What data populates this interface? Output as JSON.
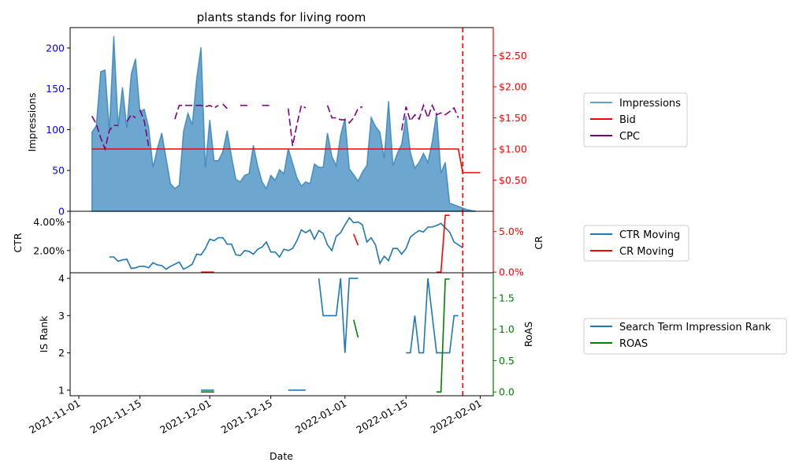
{
  "chart_data": [
    {
      "type": "area",
      "title": "plants stands for living room",
      "ylabel": "Impressions",
      "y2label": "",
      "ylim": [
        0,
        225
      ],
      "y2lim": [
        0,
        2.95
      ],
      "yticks": [
        "0",
        "50",
        "100",
        "150",
        "200"
      ],
      "y2ticks": [
        "$0.50",
        "$1.00",
        "$1.50",
        "$2.00",
        "$2.50"
      ],
      "y2_values": [
        0.5,
        1.0,
        1.5,
        2.0,
        2.5
      ],
      "left_axis_color": "#0000ff",
      "right_axis_color": "#ff0000",
      "series": [
        {
          "name": "Impressions",
          "color": "#1f77b4",
          "axis": "left",
          "x": [
            "2021-11-04",
            "2021-11-05",
            "2021-11-06",
            "2021-11-07",
            "2021-11-08",
            "2021-11-09",
            "2021-11-10",
            "2021-11-11",
            "2021-11-12",
            "2021-11-13",
            "2021-11-14",
            "2021-11-15",
            "2021-11-16",
            "2021-11-17",
            "2021-11-18",
            "2021-11-19",
            "2021-11-20",
            "2021-11-21",
            "2021-11-22",
            "2021-11-23",
            "2021-11-24",
            "2021-11-25",
            "2021-11-26",
            "2021-11-27",
            "2021-11-28",
            "2021-11-29",
            "2021-11-30",
            "2021-12-01",
            "2021-12-02",
            "2021-12-03",
            "2021-12-04",
            "2021-12-05",
            "2021-12-06",
            "2021-12-07",
            "2021-12-08",
            "2021-12-09",
            "2021-12-10",
            "2021-12-11",
            "2021-12-12",
            "2021-12-13",
            "2021-12-14",
            "2021-12-15",
            "2021-12-16",
            "2021-12-17",
            "2021-12-18",
            "2021-12-19",
            "2021-12-20",
            "2021-12-21",
            "2021-12-22",
            "2021-12-23",
            "2021-12-24",
            "2021-12-25",
            "2021-12-26",
            "2021-12-27",
            "2021-12-28",
            "2021-12-29",
            "2021-12-30",
            "2021-12-31",
            "2022-01-01",
            "2022-01-02",
            "2022-01-03",
            "2022-01-04",
            "2022-01-05",
            "2022-01-06",
            "2022-01-07",
            "2022-01-08",
            "2022-01-09",
            "2022-01-10",
            "2022-01-11",
            "2022-01-12",
            "2022-01-13",
            "2022-01-14",
            "2022-01-15",
            "2022-01-16",
            "2022-01-17",
            "2022-01-18",
            "2022-01-19",
            "2022-01-20",
            "2022-01-21",
            "2022-01-22",
            "2022-01-23",
            "2022-01-24",
            "2022-01-25",
            "2022-01-26",
            "2022-01-27",
            "2022-01-28",
            "2022-01-29",
            "2022-01-30",
            "2022-01-31"
          ],
          "values": [
            97,
            105,
            171,
            173,
            99,
            215,
            104,
            152,
            102,
            168,
            187,
            122,
            125,
            103,
            54,
            77,
            96,
            65,
            34,
            28,
            32,
            98,
            120,
            106,
            162,
            201,
            54,
            112,
            62,
            62,
            73,
            99,
            67,
            39,
            36,
            44,
            46,
            81,
            55,
            36,
            28,
            44,
            38,
            51,
            46,
            77,
            59,
            41,
            31,
            36,
            34,
            58,
            54,
            54,
            96,
            67,
            56,
            93,
            114,
            52,
            45,
            37,
            48,
            56,
            115,
            104,
            97,
            65,
            135,
            56,
            71,
            82,
            117,
            72,
            53,
            60,
            71,
            60,
            85,
            121,
            47,
            60,
            10,
            8,
            6,
            4,
            2,
            1,
            0
          ]
        },
        {
          "name": "Bid",
          "color": "#ff0000",
          "axis": "right",
          "x": [
            "2021-11-04",
            "2022-01-27",
            "2022-01-28",
            "2022-02-01"
          ],
          "values": [
            1.0,
            1.0,
            0.62,
            0.62
          ]
        },
        {
          "name": "CPC",
          "color": "#800080",
          "axis": "right",
          "segments": [
            {
              "x": [
                "2021-11-04",
                "2021-11-05",
                "2021-11-06",
                "2021-11-07",
                "2021-11-08",
                "2021-11-09",
                "2021-11-10"
              ],
              "values": [
                1.53,
                1.4,
                1.18,
                1.0,
                1.3,
                1.38,
                1.38
              ]
            },
            {
              "x": [
                "2021-11-12",
                "2021-11-13",
                "2021-11-14"
              ],
              "values": [
                1.44,
                1.55,
                1.5
              ]
            },
            {
              "x": [
                "2021-11-15",
                "2021-11-16",
                "2021-11-17"
              ],
              "values": [
                1.63,
                1.45,
                1.05
              ]
            },
            {
              "x": [
                "2021-11-23",
                "2021-11-24",
                "2021-11-25",
                "2021-11-26",
                "2021-11-27",
                "2021-11-28",
                "2021-11-29",
                "2021-11-30",
                "2021-12-01",
                "2021-12-02",
                "2021-12-03"
              ],
              "values": [
                1.48,
                1.7,
                1.7,
                1.7,
                1.7,
                1.7,
                1.7,
                1.68,
                1.7,
                1.66,
                1.7
              ]
            },
            {
              "x": [
                "2021-12-04",
                "2021-12-05"
              ],
              "values": [
                1.72,
                1.65
              ]
            },
            {
              "x": [
                "2021-12-08",
                "2021-12-09",
                "2021-12-10"
              ],
              "values": [
                1.7,
                1.7,
                1.7
              ]
            },
            {
              "x": [
                "2021-12-13",
                "2021-12-14",
                "2021-12-15"
              ],
              "values": [
                1.7,
                1.7,
                1.7
              ]
            },
            {
              "x": [
                "2021-12-19",
                "2021-12-20",
                "2021-12-21",
                "2021-12-22",
                "2021-12-23"
              ],
              "values": [
                1.65,
                1.05,
                1.4,
                1.7,
                1.66
              ]
            },
            {
              "x": [
                "2021-12-28",
                "2021-12-29",
                "2021-12-30",
                "2021-12-31",
                "2022-01-01",
                "2022-01-02",
                "2022-01-03",
                "2022-01-04",
                "2022-01-05"
              ],
              "values": [
                1.7,
                1.5,
                1.5,
                1.47,
                1.47,
                1.42,
                1.5,
                1.65,
                1.68
              ]
            },
            {
              "x": [
                "2022-01-14",
                "2022-01-15",
                "2022-01-16",
                "2022-01-17",
                "2022-01-18",
                "2022-01-19",
                "2022-01-20",
                "2022-01-21",
                "2022-01-22",
                "2022-01-23",
                "2022-01-24",
                "2022-01-25",
                "2022-01-26",
                "2022-01-27"
              ],
              "values": [
                1.3,
                1.68,
                1.45,
                1.55,
                1.48,
                1.7,
                1.5,
                1.7,
                1.55,
                1.58,
                1.55,
                1.6,
                1.66,
                1.5
              ]
            }
          ]
        }
      ],
      "vline": "2022-01-28",
      "vline_color": "#ff0000"
    },
    {
      "type": "line",
      "ylabel": "CTR",
      "y2label": "CR",
      "ylim": [
        0.0045,
        0.0475
      ],
      "y2lim": [
        -0.0008,
        0.075
      ],
      "yticks": [
        "2.00%",
        "4.00%"
      ],
      "y_values": [
        0.02,
        0.04
      ],
      "y2ticks": [
        "0.0%",
        "5.0%"
      ],
      "y2_values": [
        0.0,
        0.05
      ],
      "left_axis_color": "#000000",
      "right_axis_color": "#ff0000",
      "series": [
        {
          "name": "CTR Moving",
          "color": "#1f77b4",
          "axis": "left",
          "x": [
            "2021-11-08",
            "2021-11-09",
            "2021-11-10",
            "2021-11-11",
            "2021-11-12",
            "2021-11-13",
            "2021-11-14",
            "2021-11-15",
            "2021-11-16",
            "2021-11-17",
            "2021-11-18",
            "2021-11-19",
            "2021-11-20",
            "2021-11-21",
            "2021-11-22",
            "2021-11-23",
            "2021-11-24",
            "2021-11-25",
            "2021-11-26",
            "2021-11-27",
            "2021-11-28",
            "2021-11-29",
            "2021-11-30",
            "2021-12-01",
            "2021-12-02",
            "2021-12-03",
            "2021-12-04",
            "2021-12-05",
            "2021-12-06",
            "2021-12-07",
            "2021-12-08",
            "2021-12-09",
            "2021-12-10",
            "2021-12-11",
            "2021-12-12",
            "2021-12-13",
            "2021-12-14",
            "2021-12-15",
            "2021-12-16",
            "2021-12-17",
            "2021-12-18",
            "2021-12-19",
            "2021-12-20",
            "2021-12-21",
            "2021-12-22",
            "2021-12-23",
            "2021-12-24",
            "2021-12-25",
            "2021-12-26",
            "2021-12-27",
            "2021-12-28",
            "2021-12-29",
            "2021-12-30",
            "2021-12-31",
            "2022-01-01",
            "2022-01-02",
            "2022-01-03",
            "2022-01-04",
            "2022-01-05",
            "2022-01-06",
            "2022-01-07",
            "2022-01-08",
            "2022-01-09",
            "2022-01-10",
            "2022-01-11",
            "2022-01-12",
            "2022-01-13",
            "2022-01-14",
            "2022-01-15",
            "2022-01-16",
            "2022-01-17",
            "2022-01-18",
            "2022-01-19",
            "2022-01-20",
            "2022-01-21",
            "2022-01-22",
            "2022-01-23",
            "2022-01-24",
            "2022-01-25",
            "2022-01-26",
            "2022-01-27",
            "2022-01-28"
          ],
          "values": [
            0.0155,
            0.0155,
            0.0125,
            0.0135,
            0.014,
            0.0075,
            0.008,
            0.009,
            0.009,
            0.008,
            0.0115,
            0.01,
            0.0095,
            0.007,
            0.009,
            0.0105,
            0.012,
            0.007,
            0.0085,
            0.0105,
            0.0175,
            0.017,
            0.0215,
            0.028,
            0.027,
            0.029,
            0.029,
            0.0245,
            0.0245,
            0.017,
            0.0165,
            0.02,
            0.0195,
            0.0175,
            0.021,
            0.0225,
            0.026,
            0.019,
            0.019,
            0.0155,
            0.021,
            0.02,
            0.0215,
            0.027,
            0.0345,
            0.0325,
            0.0345,
            0.028,
            0.034,
            0.032,
            0.024,
            0.02,
            0.03,
            0.0325,
            0.038,
            0.043,
            0.0395,
            0.04,
            0.038,
            0.026,
            0.029,
            0.024,
            0.011,
            0.016,
            0.013,
            0.0215,
            0.0215,
            0.0175,
            0.0215,
            0.0295,
            0.032,
            0.034,
            0.033,
            0.0365,
            0.0365,
            0.0375,
            0.039,
            0.036,
            0.033,
            0.026,
            0.024,
            0.022
          ]
        },
        {
          "name": "CR Moving",
          "color": "#ff0000",
          "axis": "right",
          "segments": [
            {
              "x": [
                "2021-11-29",
                "2021-11-30",
                "2021-12-01",
                "2021-12-02"
              ],
              "values": [
                0.0,
                0.0,
                0.0,
                0.0
              ]
            },
            {
              "x": [
                "2022-01-03",
                "2022-01-04"
              ],
              "values": [
                0.047,
                0.033
              ]
            },
            {
              "x": [
                "2022-01-22",
                "2022-01-23",
                "2022-01-24",
                "2022-01-25"
              ],
              "values": [
                0.0,
                0.0,
                0.07,
                0.07
              ]
            }
          ]
        }
      ],
      "vline": "2022-01-28",
      "vline_color": "#ff0000"
    },
    {
      "type": "line",
      "ylabel": "IS Rank",
      "y2label": "RoAS",
      "ylim": [
        0.85,
        4.15
      ],
      "y2lim": [
        -0.06,
        1.9
      ],
      "yticks": [
        "1",
        "2",
        "3",
        "4"
      ],
      "y_values": [
        1,
        2,
        3,
        4
      ],
      "y2ticks": [
        "0.0",
        "0.5",
        "1.0",
        "1.5"
      ],
      "y2_values": [
        0.0,
        0.5,
        1.0,
        1.5
      ],
      "left_axis_color": "#000000",
      "right_axis_color": "#008000",
      "xlabel": "Date",
      "xticks": [
        "2021-11-01",
        "2021-11-15",
        "2021-12-01",
        "2021-12-15",
        "2022-01-01",
        "2022-01-15",
        "2022-02-01"
      ],
      "series": [
        {
          "name": "Search Term Impression Rank",
          "color": "#1f77b4",
          "axis": "left",
          "segments": [
            {
              "x": [
                "2021-11-29",
                "2021-11-30",
                "2021-12-01",
                "2021-12-02"
              ],
              "values": [
                1,
                1,
                1,
                1
              ]
            },
            {
              "x": [
                "2021-12-19",
                "2021-12-20",
                "2021-12-21",
                "2021-12-22",
                "2021-12-23"
              ],
              "values": [
                1,
                1,
                1,
                1,
                1
              ]
            },
            {
              "x": [
                "2021-12-26",
                "2021-12-27",
                "2021-12-28",
                "2021-12-29",
                "2021-12-30",
                "2021-12-31",
                "2022-01-01",
                "2022-01-02",
                "2022-01-03"
              ],
              "values": [
                4,
                3,
                3,
                3,
                3,
                4,
                2,
                4,
                4
              ]
            },
            {
              "x": [
                "2022-01-03",
                "2022-01-04"
              ],
              "values": [
                4,
                4
              ]
            },
            {
              "x": [
                "2022-01-15",
                "2022-01-16",
                "2022-01-17",
                "2022-01-18",
                "2022-01-19",
                "2022-01-20",
                "2022-01-21",
                "2022-01-22",
                "2022-01-23",
                "2022-01-24",
                "2022-01-25",
                "2022-01-26",
                "2022-01-27"
              ],
              "values": [
                2,
                2,
                3,
                2,
                2,
                4,
                3,
                2,
                2,
                2,
                2,
                3,
                3
              ]
            }
          ]
        },
        {
          "name": "ROAS",
          "color": "#008000",
          "axis": "right",
          "segments": [
            {
              "x": [
                "2021-11-29",
                "2021-11-30",
                "2021-12-01",
                "2021-12-02"
              ],
              "values": [
                0,
                0,
                0,
                0
              ]
            },
            {
              "x": [
                "2022-01-03",
                "2022-01-04"
              ],
              "values": [
                1.15,
                0.87
              ]
            },
            {
              "x": [
                "2022-01-22",
                "2022-01-23",
                "2022-01-24",
                "2022-01-25"
              ],
              "values": [
                0,
                0,
                1.8,
                1.8
              ]
            }
          ]
        }
      ],
      "vline": "2022-01-28",
      "vline_color": "#ff0000"
    }
  ]
}
